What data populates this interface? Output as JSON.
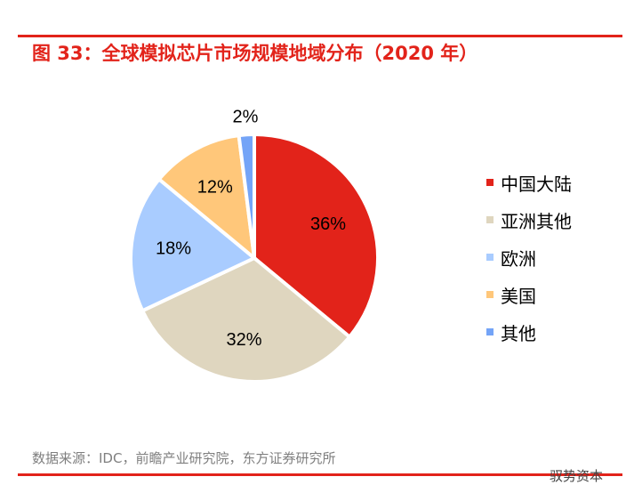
{
  "title": "图 33：全球模拟芯片市场规模地域分布（2020 年）",
  "source": "数据来源：IDC，前瞻产业研究院，东方证券研究所",
  "watermark": "驭势资本",
  "accent_color": "#E2231A",
  "chart_data": {
    "type": "pie",
    "title": "",
    "start": "12 o'clock",
    "direction": "clockwise",
    "legend_placement": "right",
    "slices": [
      {
        "name": "中国大陆",
        "value": 36,
        "label": "36%",
        "color": "#E2231A"
      },
      {
        "name": "亚洲其他",
        "value": 32,
        "label": "32%",
        "color": "#DFD6BF"
      },
      {
        "name": "欧洲",
        "value": 18,
        "label": "18%",
        "color": "#A9CCFF"
      },
      {
        "name": "美国",
        "value": 12,
        "label": "12%",
        "color": "#FFC77A"
      },
      {
        "name": "其他",
        "value": 2,
        "label": "2%",
        "color": "#74A4F7"
      }
    ]
  }
}
